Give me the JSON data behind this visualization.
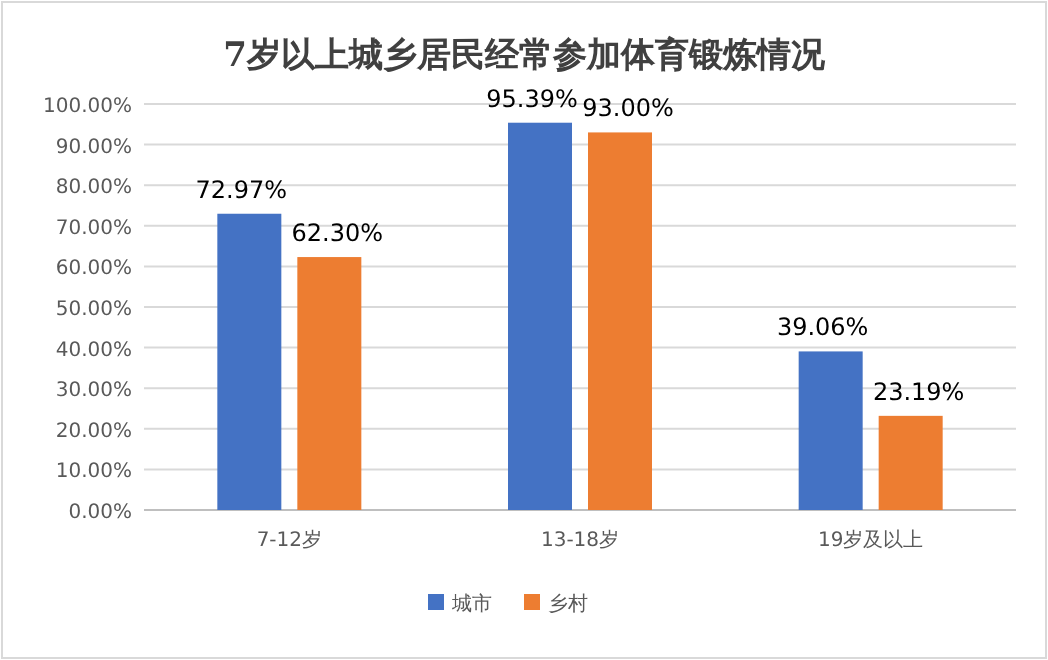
{
  "chart_data": {
    "type": "bar",
    "title": "7岁以上城乡居民经常参加体育锻炼情况",
    "categories": [
      "7-12岁",
      "13-18岁",
      "19岁及以上"
    ],
    "series": [
      {
        "name": "城市",
        "color": "#4472c4",
        "values": [
          72.97,
          95.39,
          39.06
        ],
        "value_labels": [
          "72.97%",
          "95.39%",
          "39.06%"
        ]
      },
      {
        "name": "乡村",
        "color": "#ed7d31",
        "values": [
          62.3,
          93.0,
          23.19
        ],
        "value_labels": [
          "62.30%",
          "93.00%",
          "23.19%"
        ]
      }
    ],
    "ylim": [
      0,
      100
    ],
    "yticks": [
      {
        "value": 0,
        "label": "0.00%"
      },
      {
        "value": 10,
        "label": "10.00%"
      },
      {
        "value": 20,
        "label": "20.00%"
      },
      {
        "value": 30,
        "label": "30.00%"
      },
      {
        "value": 40,
        "label": "40.00%"
      },
      {
        "value": 50,
        "label": "50.00%"
      },
      {
        "value": 60,
        "label": "60.00%"
      },
      {
        "value": 70,
        "label": "70.00%"
      },
      {
        "value": 80,
        "label": "80.00%"
      },
      {
        "value": 90,
        "label": "90.00%"
      },
      {
        "value": 100,
        "label": "100.00%"
      }
    ],
    "grid": "y",
    "legend": "bottom"
  }
}
